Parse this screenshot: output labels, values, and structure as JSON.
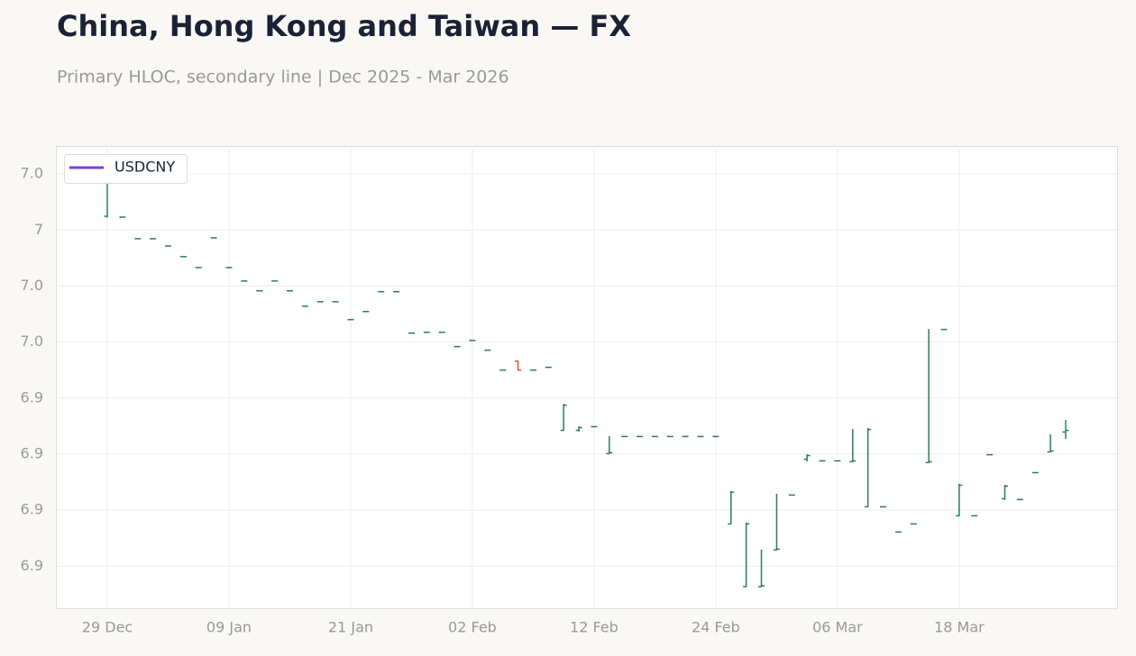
{
  "chart_data": {
    "type": "ohlc",
    "title": "China, Hong Kong and Taiwan — FX",
    "subtitle": "Primary HLOC, secondary line | Dec 2025 - Mar 2026",
    "categories": [
      "29 Dec",
      null,
      null,
      null,
      null,
      null,
      null,
      null,
      "09 Jan",
      null,
      null,
      null,
      null,
      null,
      null,
      null,
      "21 Jan",
      null,
      null,
      null,
      null,
      null,
      null,
      null,
      "02 Feb",
      null,
      null,
      null,
      null,
      null,
      null,
      null,
      "12 Feb",
      null,
      null,
      null,
      null,
      null,
      null,
      null,
      "24 Feb",
      null,
      null,
      null,
      null,
      null,
      null,
      null,
      "06 Mar",
      null,
      null,
      null,
      null,
      null,
      null,
      null,
      "18 Mar",
      null,
      null,
      null,
      null,
      null,
      null,
      null
    ],
    "ylim": [
      6.865,
      7.03
    ],
    "yticks": [
      {
        "value": 7.02,
        "label": "7.0"
      },
      {
        "value": 7.0,
        "label": "7"
      },
      {
        "value": 6.98,
        "label": "7.0"
      },
      {
        "value": 6.96,
        "label": "7.0"
      },
      {
        "value": 6.94,
        "label": "6.9"
      },
      {
        "value": 6.92,
        "label": "6.9"
      },
      {
        "value": 6.9,
        "label": "6.9"
      },
      {
        "value": 6.88,
        "label": "6.9"
      }
    ],
    "grid": true,
    "legend": "top-left",
    "series": [
      {
        "name": "USDCNY",
        "color": "#7b3fe4",
        "up_color": "#2e7d4f",
        "down_color": "#e0502a",
        "open": [
          7.0049,
          7.0046,
          6.9969,
          6.9969,
          6.9943,
          6.9905,
          6.9866,
          6.9972,
          6.9866,
          6.9818,
          6.9783,
          6.9818,
          6.9783,
          6.9728,
          6.9744,
          6.9744,
          6.968,
          6.9709,
          6.978,
          6.978,
          6.9632,
          6.9635,
          6.9635,
          6.9584,
          6.9606,
          6.9571,
          6.95,
          6.9532,
          6.95,
          6.951,
          6.9285,
          6.9285,
          6.9298,
          6.9202,
          6.9263,
          6.9263,
          6.9263,
          6.9263,
          6.9263,
          6.9263,
          6.9263,
          6.8951,
          6.8727,
          6.8727,
          6.8858,
          6.9054,
          6.9182,
          6.9176,
          6.9176,
          6.9173,
          6.9012,
          6.9012,
          6.8922,
          6.8951,
          6.917,
          6.9645,
          6.898,
          6.898,
          6.9198,
          6.9041,
          6.9038,
          6.9134,
          6.9208,
          6.9279
        ],
        "high": [
          7.0222,
          7.0046,
          6.9969,
          6.9969,
          6.9943,
          6.9905,
          6.9866,
          6.9972,
          6.9866,
          6.9818,
          6.9783,
          6.9818,
          6.9783,
          6.9728,
          6.9744,
          6.9744,
          6.968,
          6.9709,
          6.978,
          6.978,
          6.9632,
          6.9635,
          6.9635,
          6.9584,
          6.9606,
          6.9571,
          6.95,
          6.9532,
          6.95,
          6.951,
          6.9378,
          6.9298,
          6.9298,
          6.9263,
          6.9263,
          6.9263,
          6.9263,
          6.9263,
          6.9263,
          6.9263,
          6.9263,
          6.9067,
          6.8954,
          6.8858,
          6.9057,
          6.9054,
          6.9198,
          6.9176,
          6.9176,
          6.9288,
          6.9292,
          6.9012,
          6.8922,
          6.8951,
          6.9645,
          6.9645,
          6.9093,
          6.898,
          6.9198,
          6.9089,
          6.9038,
          6.9134,
          6.9269,
          6.932
        ],
        "low": [
          7.0046,
          7.0046,
          6.9969,
          6.9969,
          6.9943,
          6.9905,
          6.9866,
          6.9972,
          6.9866,
          6.9818,
          6.9783,
          6.9818,
          6.9783,
          6.9728,
          6.9744,
          6.9744,
          6.968,
          6.9709,
          6.978,
          6.978,
          6.9632,
          6.9635,
          6.9635,
          6.9584,
          6.9606,
          6.9571,
          6.95,
          6.95,
          6.95,
          6.951,
          6.9285,
          6.9282,
          6.9298,
          6.9202,
          6.9263,
          6.9263,
          6.9263,
          6.9263,
          6.9263,
          6.9263,
          6.9263,
          6.8951,
          6.8727,
          6.8727,
          6.8858,
          6.9054,
          6.9176,
          6.9176,
          6.9176,
          6.9173,
          6.9012,
          6.9012,
          6.8922,
          6.8951,
          6.917,
          6.9645,
          6.898,
          6.898,
          6.9198,
          6.9038,
          6.9038,
          6.9134,
          6.9208,
          6.9256
        ],
        "close": [
          7.021,
          7.0046,
          6.9969,
          6.9969,
          6.9943,
          6.9905,
          6.9866,
          6.9972,
          6.9866,
          6.9818,
          6.9783,
          6.9818,
          6.9783,
          6.9728,
          6.9744,
          6.9744,
          6.968,
          6.9709,
          6.978,
          6.978,
          6.9632,
          6.9635,
          6.9635,
          6.9584,
          6.9606,
          6.9571,
          6.95,
          6.95,
          6.95,
          6.951,
          6.9375,
          6.9295,
          6.9298,
          6.9205,
          6.9263,
          6.9263,
          6.9263,
          6.9263,
          6.9263,
          6.9263,
          6.9263,
          6.9064,
          6.8951,
          6.873,
          6.8861,
          6.9054,
          6.9195,
          6.9176,
          6.9176,
          6.9176,
          6.9288,
          6.9012,
          6.8922,
          6.8951,
          6.9173,
          6.9645,
          6.9089,
          6.898,
          6.9198,
          6.9086,
          6.9038,
          6.9134,
          6.9211,
          6.9285
        ]
      }
    ]
  }
}
